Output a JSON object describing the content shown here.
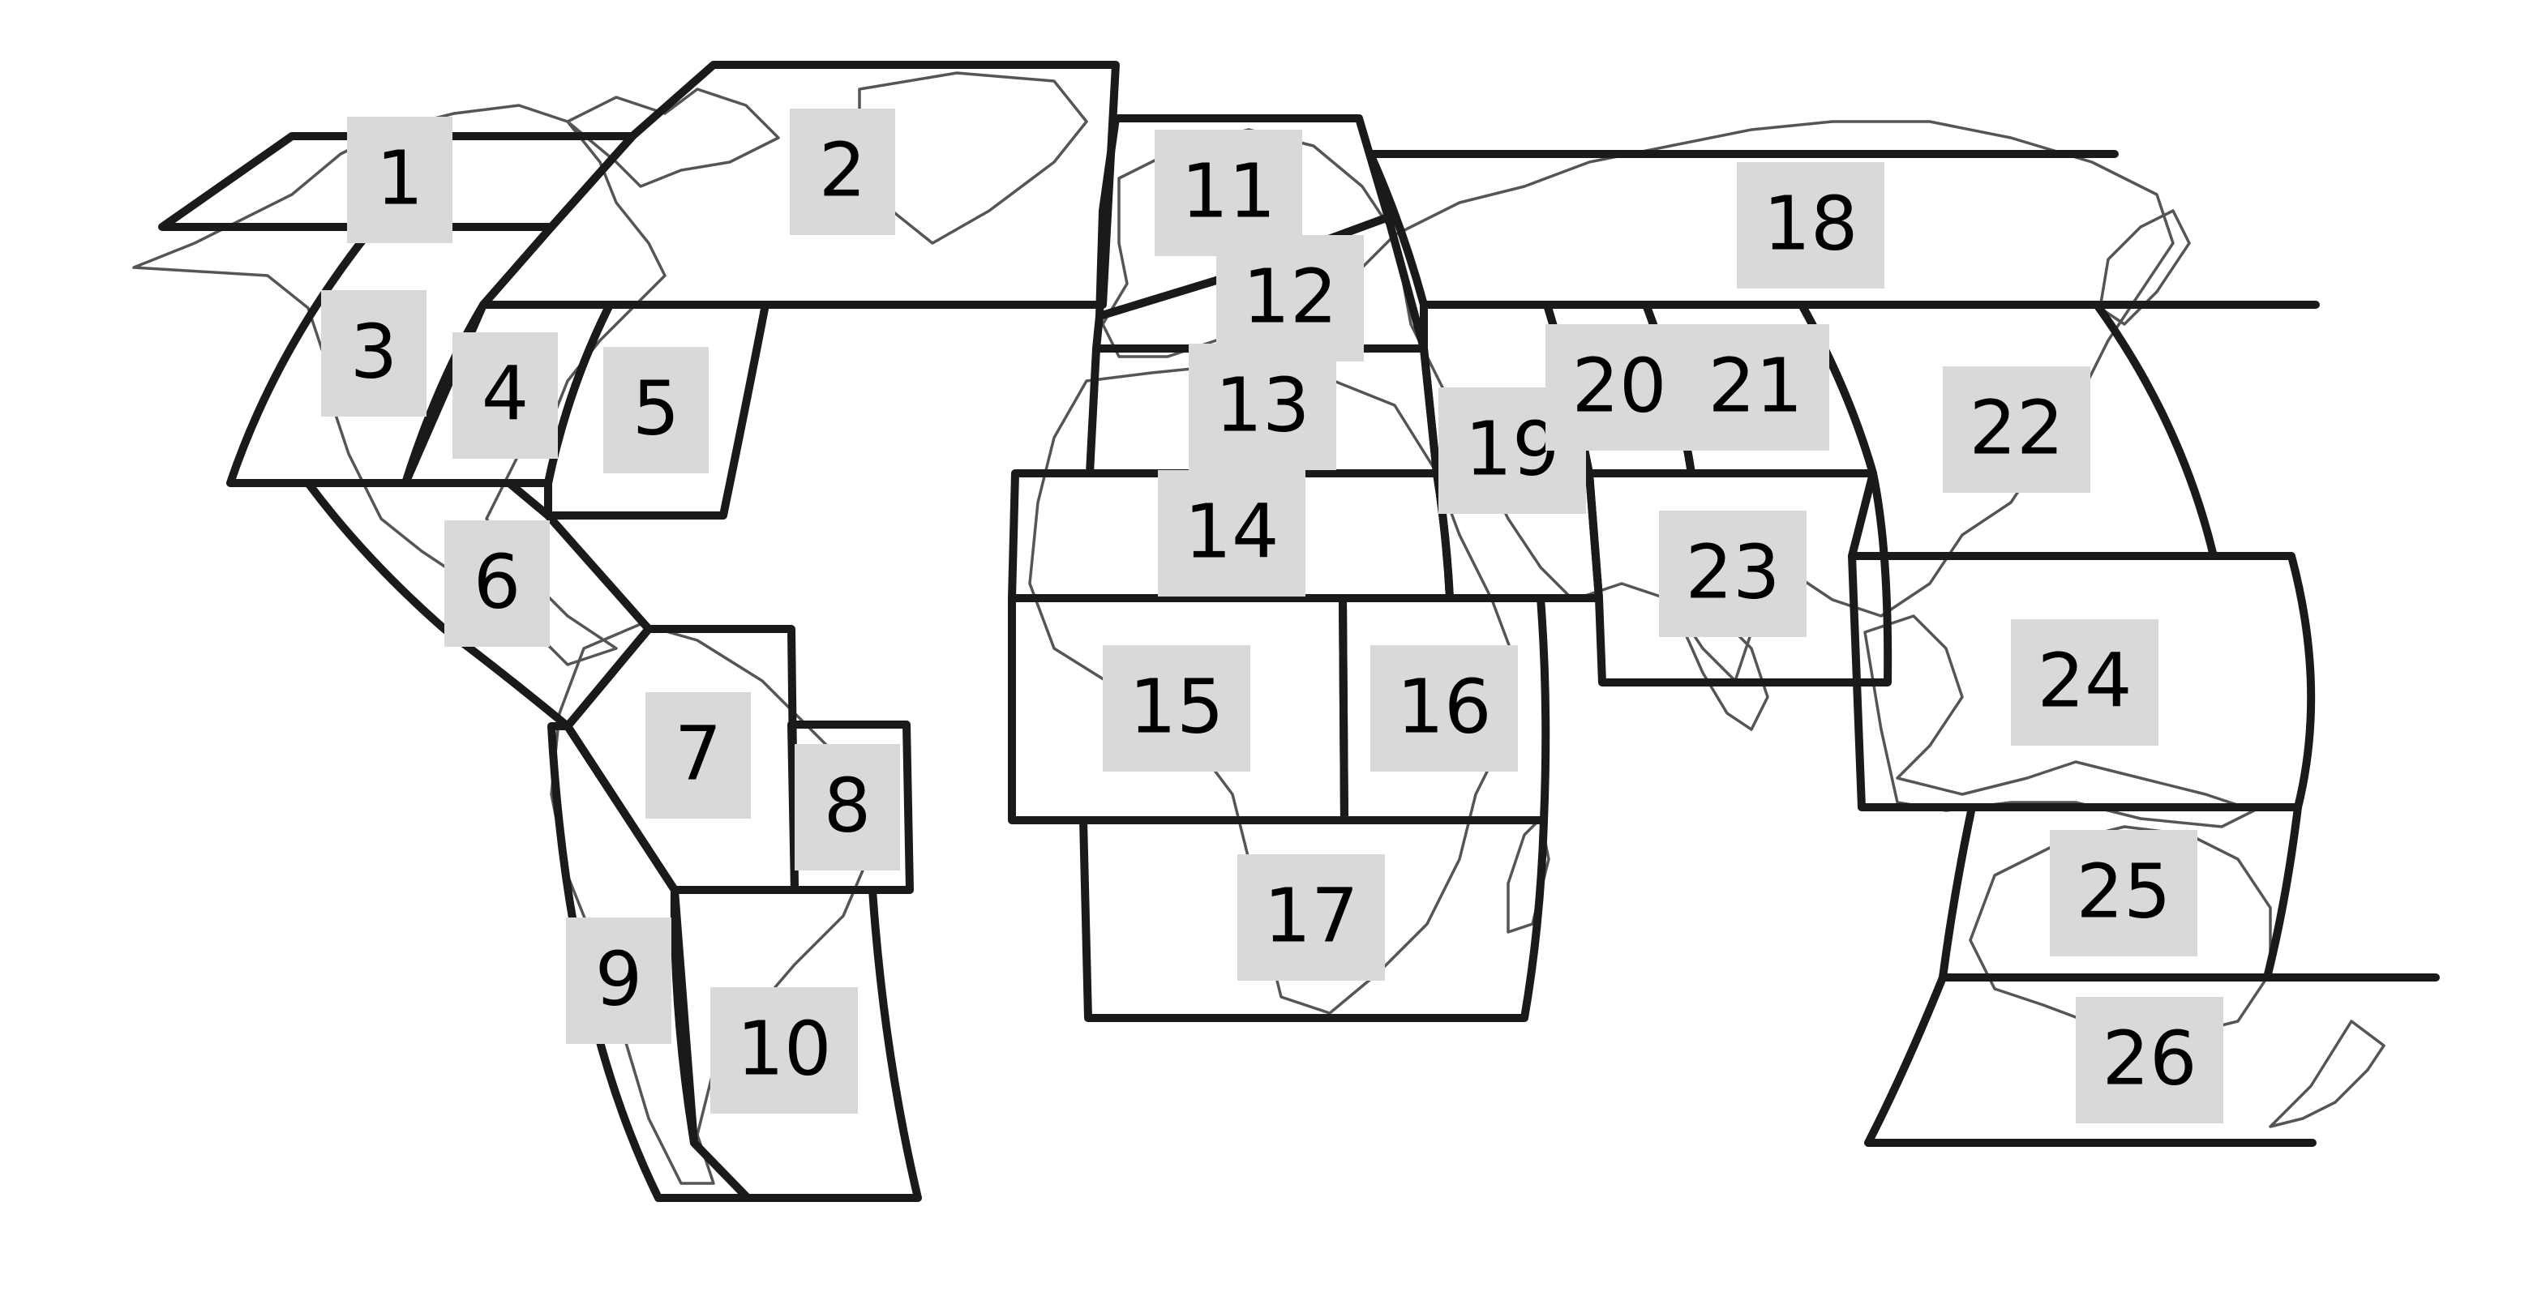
{
  "map": {
    "labels": [
      {
        "id": "1",
        "text": "1"
      },
      {
        "id": "2",
        "text": "2"
      },
      {
        "id": "3",
        "text": "3"
      },
      {
        "id": "4",
        "text": "4"
      },
      {
        "id": "5",
        "text": "5"
      },
      {
        "id": "6",
        "text": "6"
      },
      {
        "id": "7",
        "text": "7"
      },
      {
        "id": "8",
        "text": "8"
      },
      {
        "id": "9",
        "text": "9"
      },
      {
        "id": "10",
        "text": "10"
      },
      {
        "id": "11",
        "text": "11"
      },
      {
        "id": "12",
        "text": "12"
      },
      {
        "id": "13",
        "text": "13"
      },
      {
        "id": "14",
        "text": "14"
      },
      {
        "id": "15",
        "text": "15"
      },
      {
        "id": "16",
        "text": "16"
      },
      {
        "id": "17",
        "text": "17"
      },
      {
        "id": "18",
        "text": "18"
      },
      {
        "id": "19",
        "text": "19"
      },
      {
        "id": "20",
        "text": "20"
      },
      {
        "id": "21",
        "text": "21"
      },
      {
        "id": "22",
        "text": "22"
      },
      {
        "id": "23",
        "text": "23"
      },
      {
        "id": "24",
        "text": "24"
      },
      {
        "id": "25",
        "text": "25"
      },
      {
        "id": "26",
        "text": "26"
      }
    ],
    "colors": {
      "region_border": "#1a1a1a",
      "coastline": "#555555",
      "label_background": "#d9d9d9",
      "background": "#ffffff"
    }
  }
}
